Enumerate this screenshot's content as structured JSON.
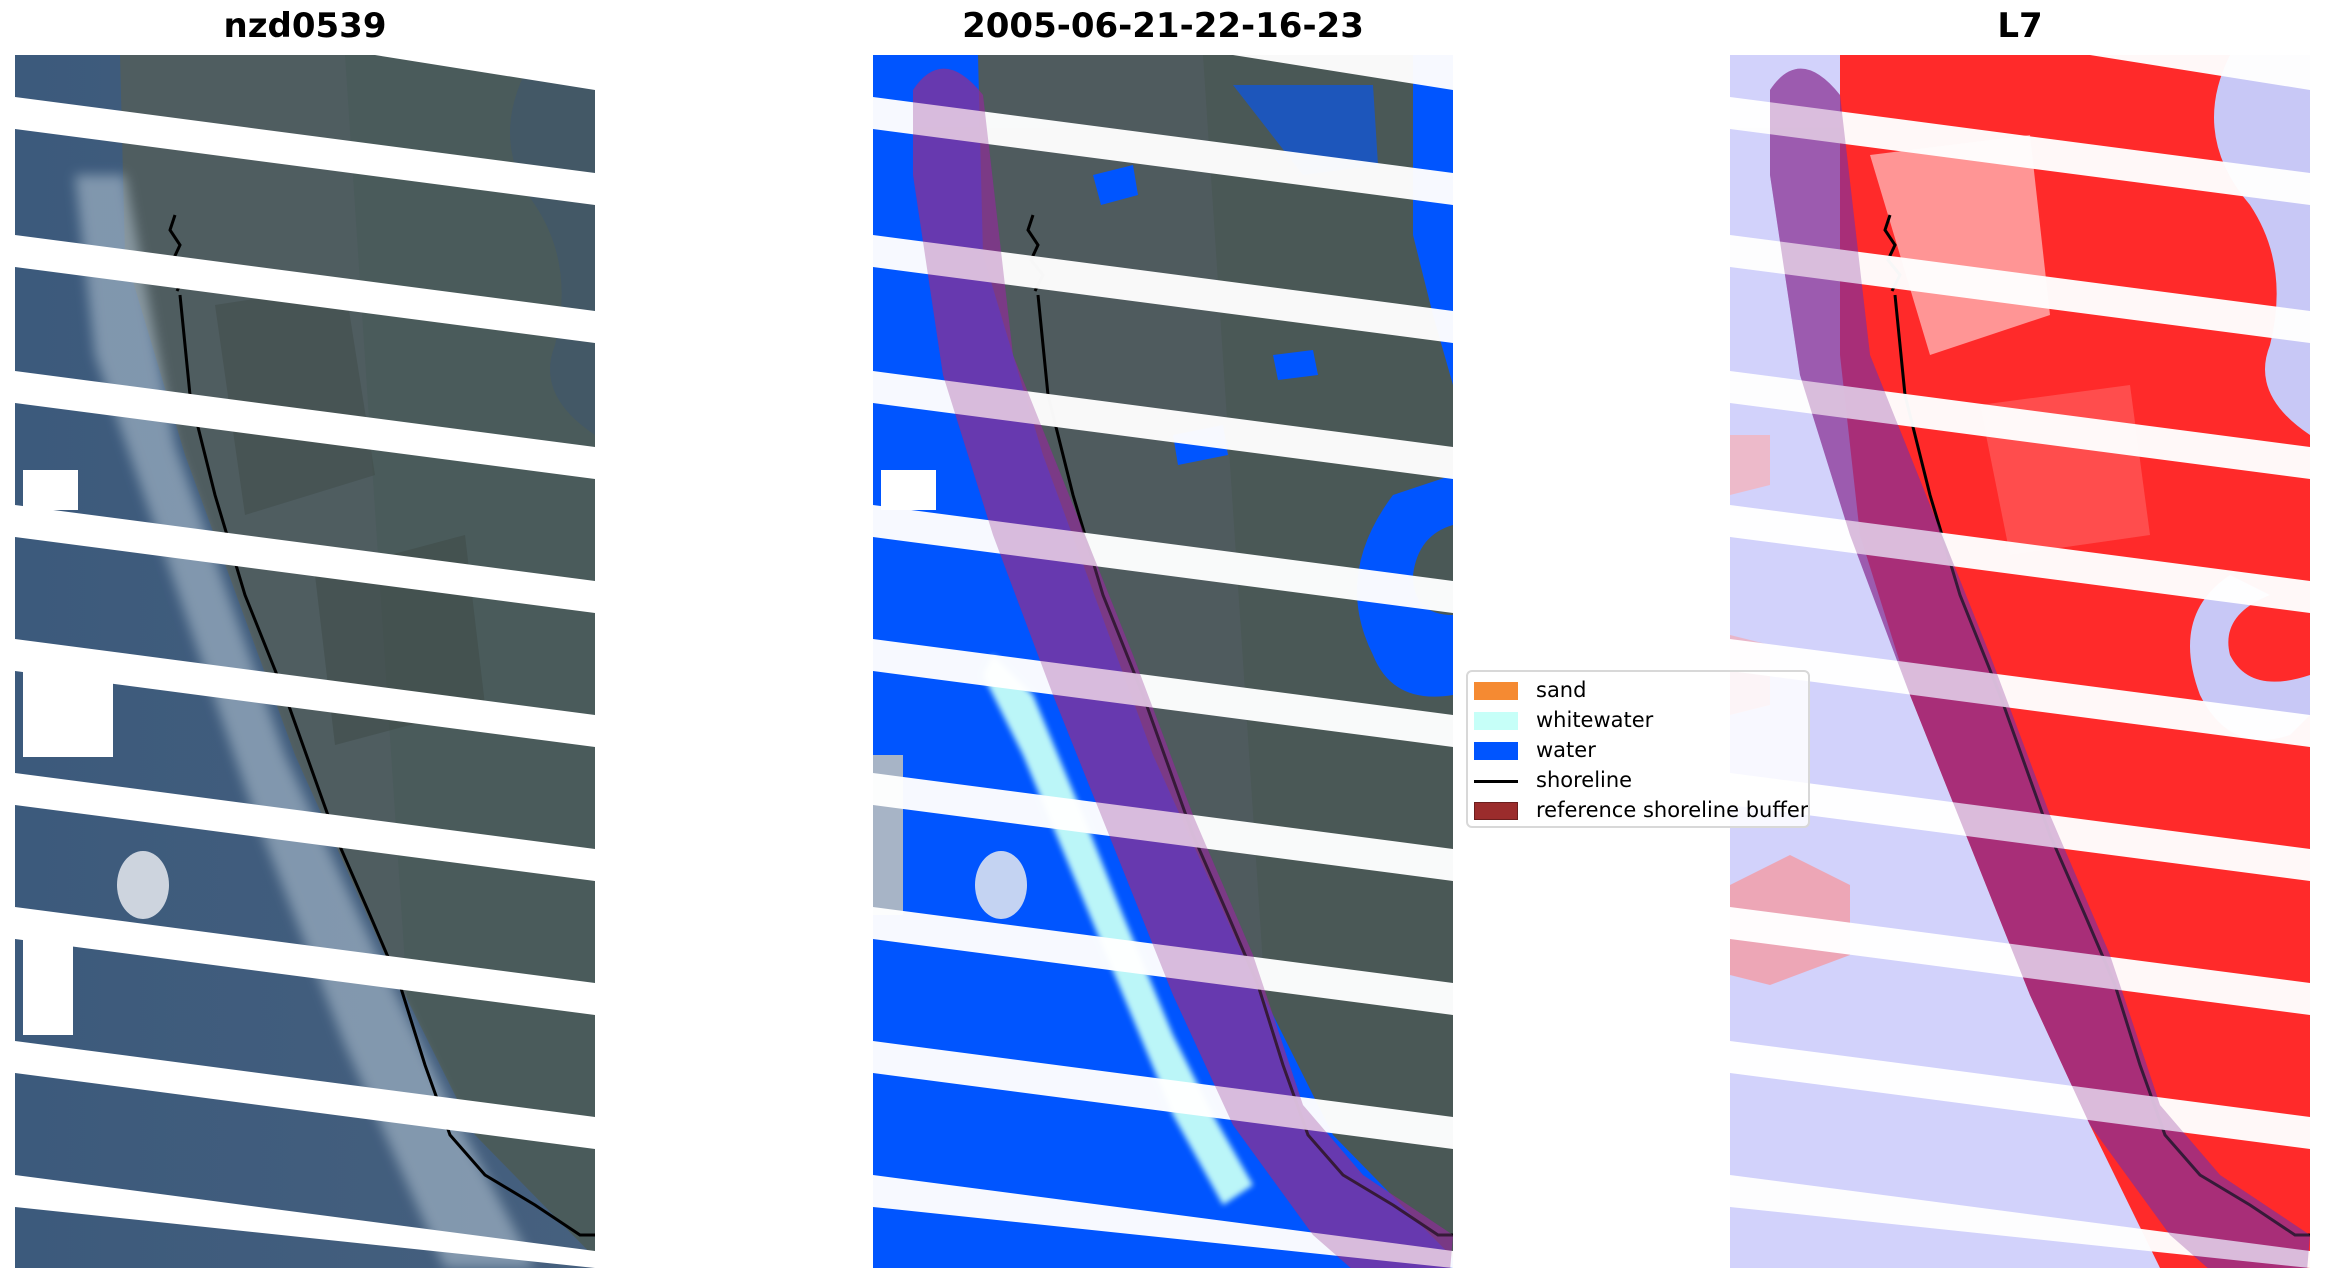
{
  "panels": {
    "left_title": "nzd0539",
    "middle_title": "2005-06-21-22-16-23",
    "right_title": "L7"
  },
  "legend": {
    "items": [
      {
        "label": "sand",
        "kind": "patch",
        "color": "#f58a32"
      },
      {
        "label": "whitewater",
        "kind": "patch",
        "color": "#c6fff8"
      },
      {
        "label": "water",
        "kind": "patch",
        "color": "#0055ff"
      },
      {
        "label": "shoreline",
        "kind": "line",
        "color": "#000000"
      },
      {
        "label": "reference shoreline buffer",
        "kind": "patch",
        "color": "#9b2c2c"
      }
    ]
  },
  "colors": {
    "rgb_land": "#4a5a63",
    "rgb_sea": "#3a5a80",
    "water_class": "#0055ff",
    "whitewater_class": "#c6fff8",
    "buffer_overlay": "#7a1a8a",
    "index_positive": "#ff1f1f",
    "index_negative": "#c8c8ff"
  }
}
